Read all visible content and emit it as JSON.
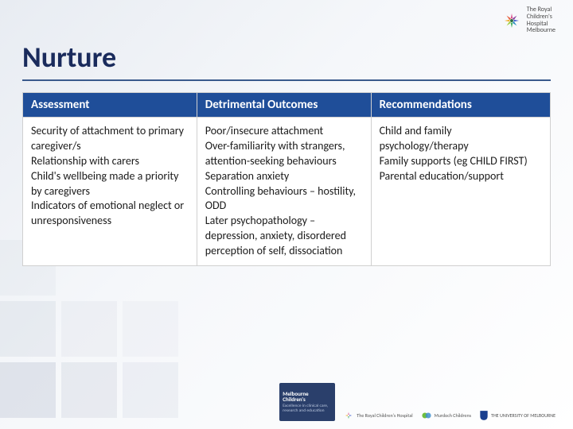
{
  "brand": {
    "top_logo_line1": "The Royal",
    "top_logo_line2": "Children's",
    "top_logo_line3": "Hospital",
    "top_logo_line4": "Melbourne"
  },
  "slide": {
    "title": "Nurture"
  },
  "table": {
    "headers": [
      "Assessment",
      "Detrimental Outcomes",
      "Recommendations"
    ],
    "row": {
      "assessment": "Security of attachment to primary caregiver/s\nRelationship with carers\nChild's wellbeing made a priority by caregivers\nIndicators of emotional neglect or unresponsiveness",
      "outcomes": "Poor/insecure attachment\nOver-familiarity with strangers, attention-seeking behaviours\nSeparation anxiety\nControlling behaviours – hostility, ODD\nLater psychopathology – depression, anxiety, disordered perception of self, dissociation",
      "recommendations": "Child and family psychology/therapy\nFamily supports (eg CHILD FIRST)\nParental education/support"
    }
  },
  "footer": {
    "badge_title": "Melbourne Children's",
    "badge_sub": "Excellence in clinical care, research and education",
    "partner1": "The Royal Children's Hospital",
    "partner2": "Murdoch Childrens",
    "partner3": "THE UNIVERSITY OF MELBOURNE"
  },
  "colors": {
    "header_bg": "#1f4e99",
    "title_color": "#1a2b5c",
    "rule_color": "#3a5a8c"
  }
}
